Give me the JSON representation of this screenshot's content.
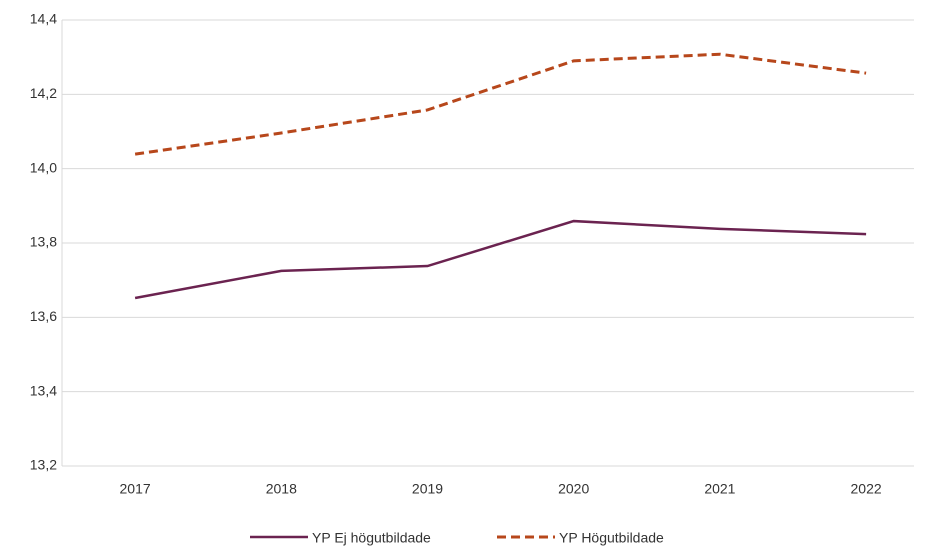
{
  "chart_data": {
    "type": "line",
    "categories": [
      "2017",
      "2018",
      "2019",
      "2020",
      "2021",
      "2022"
    ],
    "series": [
      {
        "name": "YP Ej högutbildade",
        "color": "#6b2350",
        "dash": false,
        "values": [
          13.652,
          13.725,
          13.738,
          13.859,
          13.838,
          13.824
        ]
      },
      {
        "name": "YP Högutbildade",
        "color": "#b7471b",
        "dash": true,
        "values": [
          14.039,
          14.096,
          14.158,
          14.29,
          14.308,
          14.257
        ]
      }
    ],
    "ylim": [
      13.2,
      14.4
    ],
    "yticks": [
      {
        "value": 13.2,
        "label": "13,2"
      },
      {
        "value": 13.4,
        "label": "13,4"
      },
      {
        "value": 13.6,
        "label": "13,6"
      },
      {
        "value": 13.8,
        "label": "13,8"
      },
      {
        "value": 14.0,
        "label": "14,0"
      },
      {
        "value": 14.2,
        "label": "14,2"
      },
      {
        "value": 14.4,
        "label": "14,4"
      }
    ],
    "grid": true,
    "legend": "bottom"
  }
}
